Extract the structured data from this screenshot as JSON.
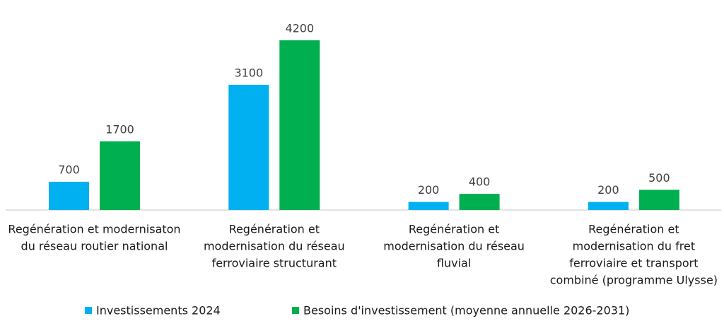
{
  "chart_data": {
    "type": "bar",
    "categories": [
      [
        "Regénération et modernisaton",
        "du réseau routier national"
      ],
      [
        "Regénération et",
        "modernisation du réseau",
        "ferroviaire structurant"
      ],
      [
        "Regénération et",
        "modernisation du réseau",
        "fluvial"
      ],
      [
        "Regénération et",
        "modernisation du fret",
        "ferroviaire et transport",
        "combiné (programme Ulysse)"
      ]
    ],
    "series": [
      {
        "name": "Investissements 2024",
        "color": "#00b0f0",
        "values": [
          700,
          3100,
          200,
          200
        ]
      },
      {
        "name": "Besoins d'investissement (moyenne annuelle 2026-2031)",
        "color": "#00b050",
        "values": [
          1700,
          4200,
          400,
          500
        ]
      }
    ],
    "legend": "bottom"
  }
}
